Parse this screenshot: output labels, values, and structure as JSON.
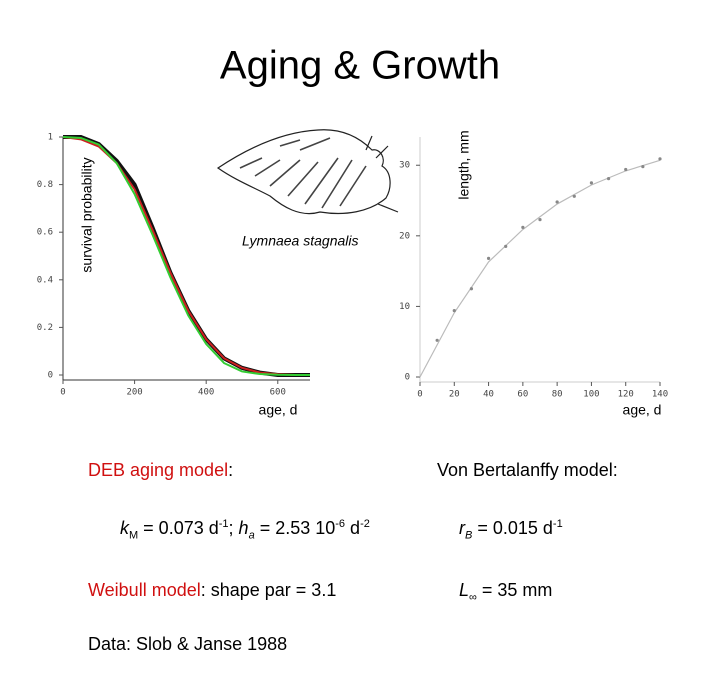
{
  "title": "Aging & Growth",
  "chart_data": [
    {
      "type": "line",
      "ylabel": "survival probability",
      "xlabel": "age, d",
      "annotation": "Lymnaea stagnalis",
      "x": [
        0,
        50,
        100,
        150,
        200,
        250,
        300,
        350,
        400,
        450,
        500,
        550,
        600,
        650,
        690
      ],
      "series": [
        {
          "color": "#111111",
          "values": [
            1,
            1,
            0.97,
            0.9,
            0.8,
            0.62,
            0.43,
            0.27,
            0.15,
            0.07,
            0.03,
            0.01,
            0,
            0,
            0
          ]
        },
        {
          "color": "#cc2020",
          "values": [
            1,
            0.99,
            0.96,
            0.89,
            0.78,
            0.61,
            0.43,
            0.27,
            0.15,
            0.07,
            0.03,
            0.01,
            0.003,
            0,
            0
          ]
        },
        {
          "color": "#33cc33",
          "values": [
            1,
            0.996,
            0.968,
            0.89,
            0.76,
            0.59,
            0.41,
            0.25,
            0.13,
            0.05,
            0.015,
            0.004,
            0.001,
            0,
            0
          ]
        }
      ],
      "xlim": [
        0,
        690
      ],
      "ylim": [
        0,
        1
      ],
      "xticks": [
        0,
        200,
        400,
        600
      ],
      "yticks": [
        0,
        0.2,
        0.4,
        0.6,
        0.8,
        1
      ]
    },
    {
      "type": "scatter",
      "ylabel": "length, mm",
      "xlabel": "age, d",
      "x": [
        10,
        20,
        30,
        40,
        50,
        60,
        70,
        80,
        90,
        100,
        110,
        120,
        130,
        140
      ],
      "series": [
        {
          "color": "#888888",
          "values": [
            5.2,
            9.4,
            12.5,
            16.8,
            18.5,
            21.2,
            22.3,
            24.8,
            25.6,
            27.5,
            28.1,
            29.4,
            29.8,
            30.9
          ]
        }
      ],
      "curve": {
        "color": "#bbbbbb",
        "x": [
          0,
          20,
          40,
          60,
          80,
          100,
          120,
          140
        ],
        "values": [
          0,
          9.1,
          16.3,
          20.9,
          24.5,
          27.2,
          29.2,
          30.7
        ]
      },
      "xlim": [
        0,
        140
      ],
      "ylim": [
        0,
        34
      ],
      "xticks": [
        0,
        20,
        40,
        60,
        80,
        100,
        120,
        140
      ],
      "yticks": [
        0,
        10,
        20,
        30
      ]
    }
  ],
  "notes_left": [
    [
      "DEB aging model",
      ":"
    ],
    [
      "k",
      "M",
      " = 0.073 d",
      "-1",
      "; ",
      "h",
      "a",
      " = 2.53 10",
      "-6",
      " d",
      "-2"
    ],
    [
      "Weibull model",
      ": shape par = 3.1"
    ],
    [
      "Data: Slob & Janse 1988"
    ]
  ],
  "notes_right": [
    [
      "Von Bertalanffy model:"
    ],
    [
      "r",
      "B",
      " = 0.015 d",
      "-1"
    ],
    [
      "L",
      "∞",
      " = 35 mm"
    ]
  ]
}
